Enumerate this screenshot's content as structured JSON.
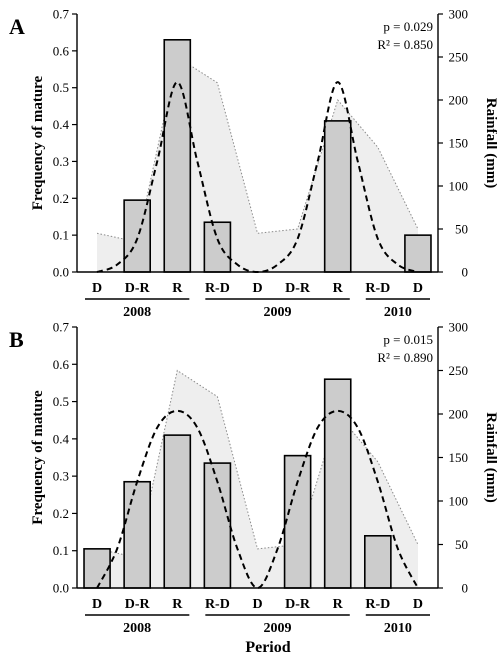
{
  "figure": {
    "xlabel": "Period"
  },
  "chart_data": [
    {
      "panel_label": "A",
      "type": "bar",
      "categories": [
        "D",
        "D-R",
        "R",
        "R-D",
        "D",
        "D-R",
        "R",
        "R-D",
        "D"
      ],
      "year_groups": [
        {
          "label": "2008",
          "start": 0,
          "end": 2
        },
        {
          "label": "2009",
          "start": 3,
          "end": 6
        },
        {
          "label": "2010",
          "start": 7,
          "end": 8
        }
      ],
      "ylabel": "Frequency of mature",
      "ylabel_right": "Rainfall (mm)",
      "ylim": [
        0,
        0.7
      ],
      "yticks": [
        "0.0",
        "0.1",
        "0.2",
        "0.3",
        "0.4",
        "0.5",
        "0.6",
        "0.7"
      ],
      "y2lim": [
        0,
        300
      ],
      "y2ticks": [
        "0",
        "50",
        "100",
        "150",
        "200",
        "250",
        "300"
      ],
      "series": [
        {
          "kind": "bar",
          "values": [
            null,
            0.195,
            0.63,
            0.135,
            null,
            null,
            0.41,
            null,
            0.1
          ]
        },
        {
          "kind": "area",
          "axis": "right",
          "values": [
            45,
            35,
            250,
            220,
            45,
            50,
            200,
            145,
            50
          ]
        }
      ],
      "fit_curve": {
        "style": "dashed",
        "x": [
          0,
          0.5,
          1,
          1.5,
          2,
          2.5,
          3,
          3.5,
          4,
          4.5,
          5,
          5.5,
          6,
          6.5,
          7,
          7.5,
          8
        ],
        "y": [
          0.0,
          0.02,
          0.09,
          0.3,
          0.515,
          0.3,
          0.09,
          0.02,
          0.0,
          0.02,
          0.09,
          0.3,
          0.515,
          0.3,
          0.09,
          0.02,
          0.0
        ]
      },
      "annotations": [
        "p = 0.029",
        "R² = 0.850"
      ]
    },
    {
      "panel_label": "B",
      "type": "bar",
      "categories": [
        "D",
        "D-R",
        "R",
        "R-D",
        "D",
        "D-R",
        "R",
        "R-D",
        "D"
      ],
      "year_groups": [
        {
          "label": "2008",
          "start": 0,
          "end": 2
        },
        {
          "label": "2009",
          "start": 3,
          "end": 6
        },
        {
          "label": "2010",
          "start": 7,
          "end": 8
        }
      ],
      "ylabel": "Frequency of mature",
      "ylabel_right": "Rainfall (mm)",
      "ylim": [
        0,
        0.7
      ],
      "yticks": [
        "0.0",
        "0.1",
        "0.2",
        "0.3",
        "0.4",
        "0.5",
        "0.6",
        "0.7"
      ],
      "y2lim": [
        0,
        300
      ],
      "y2ticks": [
        "0",
        "50",
        "100",
        "150",
        "200",
        "250",
        "300"
      ],
      "series": [
        {
          "kind": "bar",
          "values": [
            0.105,
            0.285,
            0.41,
            0.335,
            null,
            0.355,
            0.56,
            0.14,
            null
          ]
        },
        {
          "kind": "area",
          "axis": "right",
          "values": [
            45,
            35,
            250,
            220,
            45,
            50,
            200,
            145,
            50
          ]
        }
      ],
      "fit_curve": {
        "style": "dashed",
        "x": [
          0,
          0.5,
          1,
          1.5,
          2,
          2.5,
          3,
          3.5,
          4,
          4.5,
          5,
          5.5,
          6,
          6.5,
          7,
          7.5,
          8
        ],
        "y": [
          0.0,
          0.105,
          0.285,
          0.43,
          0.475,
          0.43,
          0.285,
          0.105,
          0.0,
          0.105,
          0.285,
          0.43,
          0.475,
          0.43,
          0.285,
          0.105,
          0.0
        ]
      },
      "annotations": [
        "p = 0.015",
        "R² = 0.890"
      ]
    }
  ]
}
